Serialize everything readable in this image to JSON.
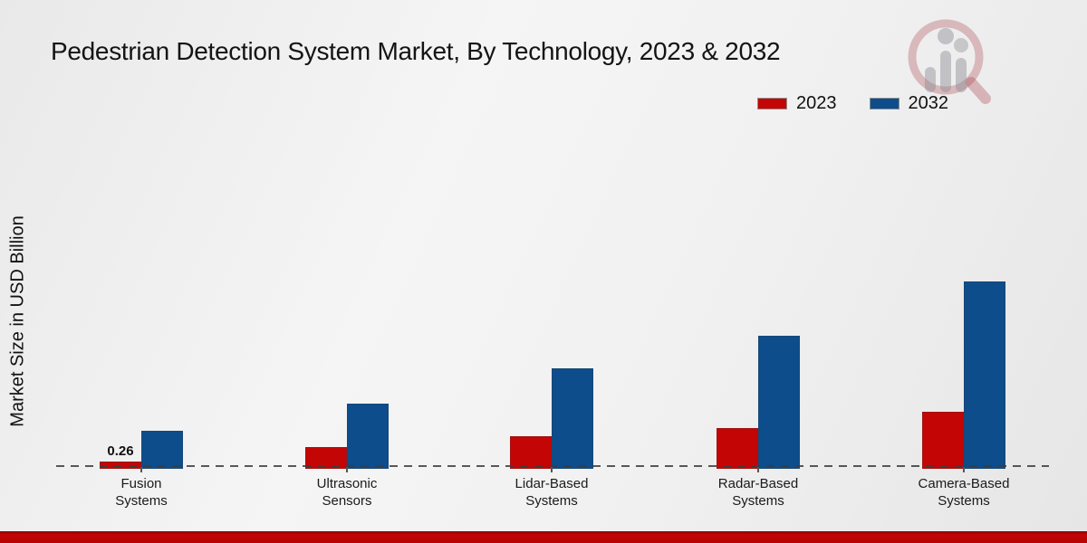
{
  "title": "Pedestrian Detection System Market, By Technology, 2023 & 2032",
  "y_axis_label": "Market Size in USD Billion",
  "colors": {
    "series_2023": "#c30505",
    "series_2032": "#0d4d8c",
    "bottom_strip": "#bb0404",
    "baseline": "#3c3c3c",
    "background_light": "#f5f5f5",
    "background_dark": "#e7e7e7"
  },
  "legend": {
    "position": "top-right",
    "items": [
      {
        "label": "2023",
        "color": "#c30505"
      },
      {
        "label": "2032",
        "color": "#0d4d8c"
      }
    ]
  },
  "chart_data": {
    "type": "bar",
    "title": "Pedestrian Detection System Market, By Technology, 2023 & 2032",
    "ylabel": "Market Size in USD Billion",
    "xlabel": "",
    "categories": [
      "Fusion Systems",
      "Ultrasonic Sensors",
      "Lidar-Based Systems",
      "Radar-Based Systems",
      "Camera-Based Systems"
    ],
    "category_label_lines": [
      [
        "Fusion",
        "Systems"
      ],
      [
        "Ultrasonic",
        "Sensors"
      ],
      [
        "Lidar-Based",
        "Systems"
      ],
      [
        "Radar-Based",
        "Systems"
      ],
      [
        "Camera-Based",
        "Systems"
      ]
    ],
    "series": [
      {
        "name": "2023",
        "color": "#c30505",
        "values": [
          0.26,
          0.8,
          1.2,
          1.5,
          2.1
        ]
      },
      {
        "name": "2032",
        "color": "#0d4d8c",
        "values": [
          1.4,
          2.4,
          3.7,
          4.9,
          6.9
        ]
      }
    ],
    "bar_value_labels": [
      {
        "category_index": 0,
        "series_index": 0,
        "text": "0.26"
      }
    ],
    "ylim": [
      0,
      7.5
    ],
    "grid": false,
    "baseline_style": "dashed",
    "legend_position": "top-right"
  },
  "watermark": {
    "icon": "magnifier-bar-chart-logo"
  }
}
